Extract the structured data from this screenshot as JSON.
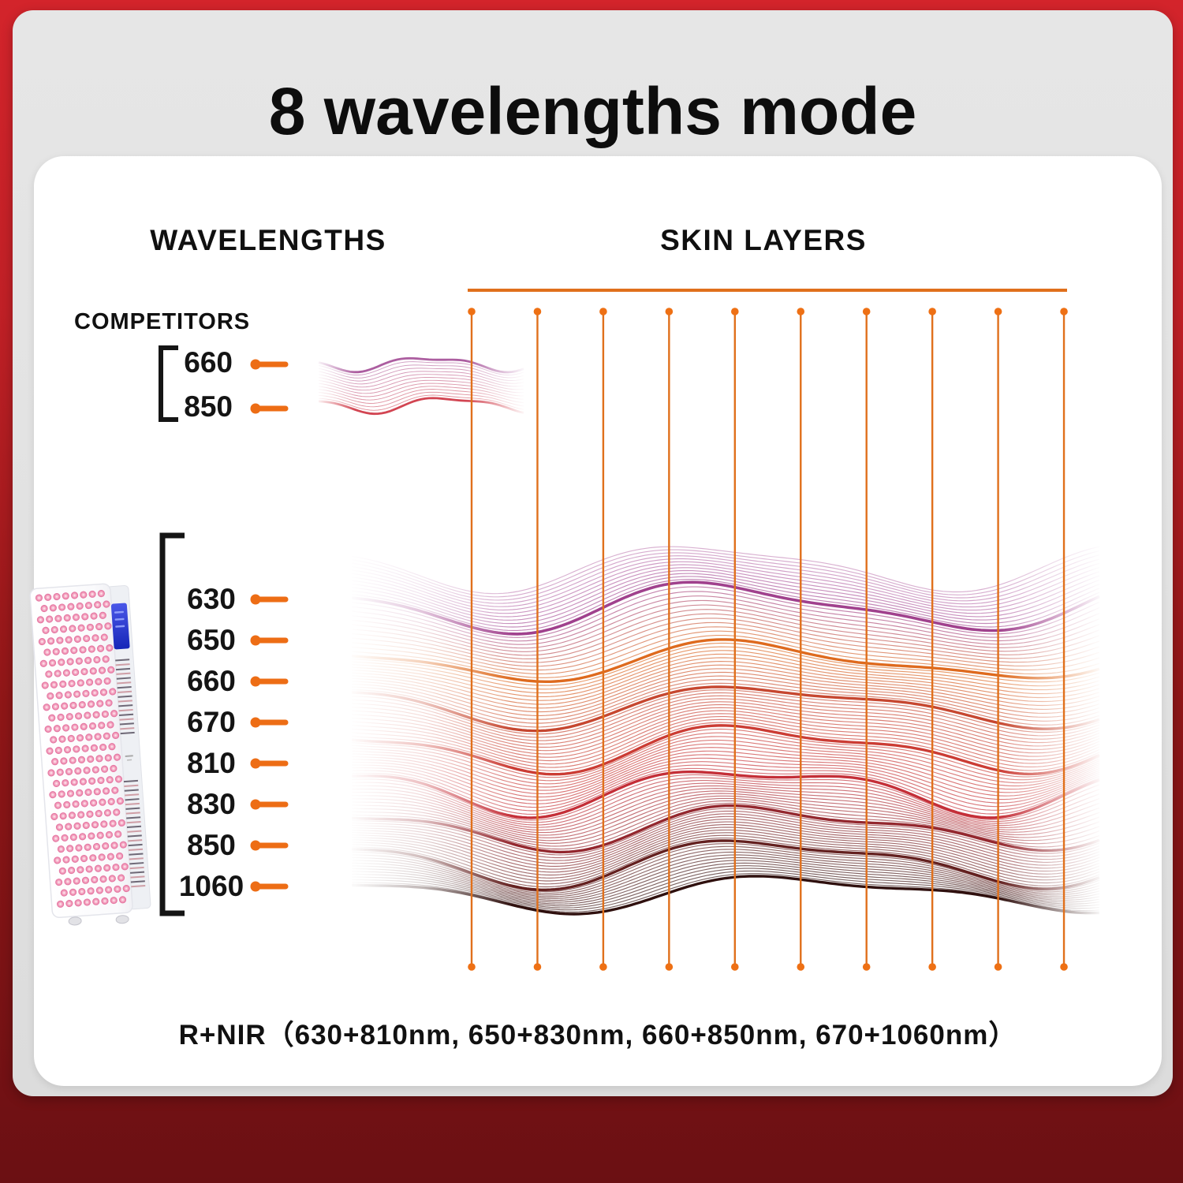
{
  "title": "8 wavelengths mode",
  "headings": {
    "left": "WAVELENGTHS",
    "right": "SKIN LAYERS"
  },
  "competitors": {
    "label": "COMPETITORS",
    "values": [
      "660",
      "850"
    ]
  },
  "device": {
    "wavelengths": [
      "630",
      "650",
      "660",
      "670",
      "810",
      "830",
      "850",
      "1060"
    ]
  },
  "caption": "R+NIR（630+810nm,  650+830nm,  660+850nm,  670+1060nm）",
  "colors": {
    "marker_orange": "#ED6D15",
    "grid_orange": "#E0701C",
    "grid_dot_orange": "#EE7014",
    "frame_red_top": "#D3242B",
    "frame_red_bottom": "#6B1013",
    "panel_gray": "#E3E3E3",
    "bracket_black": "#151515",
    "screen_blue": "#2B3BD3",
    "led_pink": "#EC7FA8"
  },
  "chart_data": {
    "type": "ribbon-diagram",
    "title": "8 wavelengths mode",
    "x_axis": {
      "label": "SKIN LAYERS",
      "columns": 10
    },
    "competitor_series": {
      "label": "COMPETITORS",
      "wavelengths_nm": [
        660,
        850
      ]
    },
    "device_series_nm": [
      630,
      650,
      660,
      670,
      810,
      830,
      850,
      1060
    ],
    "dual_mode_pairs": [
      "630+810nm",
      "650+830nm",
      "660+850nm",
      "670+1060nm"
    ],
    "thin_lines_per_band": 12,
    "waves_big": [
      {
        "label": "",
        "color": "#C98FBE",
        "base": 714,
        "a1": 27,
        "l1": 570,
        "p1": 472,
        "a2": 8,
        "l2": 300,
        "p2": 560
      },
      {
        "label": "630",
        "color": "#A0418D",
        "base": 769,
        "a1": 28,
        "l1": 585,
        "p1": 482,
        "a2": 9,
        "l2": 312,
        "p2": 600
      },
      {
        "label": "650",
        "color": "#DE6A1E",
        "base": 838,
        "a1": 22,
        "l1": 605,
        "p1": 500,
        "a2": 8,
        "l2": 322,
        "p2": 646
      },
      {
        "label": "660",
        "color": "#C64730",
        "base": 894,
        "a1": 24,
        "l1": 622,
        "p1": 512,
        "a2": 9,
        "l2": 332,
        "p2": 606
      },
      {
        "label": "670",
        "color": "#CB3C34",
        "base": 948,
        "a1": 26,
        "l1": 600,
        "p1": 522,
        "a2": 10,
        "l2": 302,
        "p2": 648
      },
      {
        "label": "810",
        "color": "#C42F38",
        "base": 1000,
        "a1": 26,
        "l1": 582,
        "p1": 520,
        "a2": 11,
        "l2": 292,
        "p2": 604
      },
      {
        "label": "830",
        "color": "#93272E",
        "base": 1048,
        "a1": 24,
        "l1": 602,
        "p1": 534,
        "a2": 10,
        "l2": 312,
        "p2": 652
      },
      {
        "label": "850",
        "color": "#63201F",
        "base": 1092,
        "a1": 27,
        "l1": 622,
        "p1": 518,
        "a2": 10,
        "l2": 322,
        "p2": 622
      },
      {
        "label": "1060",
        "color": "#2F100E",
        "base": 1132,
        "a1": 20,
        "l1": 642,
        "p1": 542,
        "a2": 8,
        "l2": 332,
        "p2": 662
      }
    ],
    "waves_competitor": [
      {
        "label": "660",
        "color": "#AC5EA0",
        "base": 461,
        "a1": 8,
        "l1": 195,
        "p1": 398,
        "a2": 3,
        "l2": 95,
        "p2": 430
      },
      {
        "label": "850",
        "color": "#D24552",
        "base": 513,
        "a1": 9,
        "l1": 200,
        "p1": 420,
        "a2": 3,
        "l2": 100,
        "p2": 455
      }
    ]
  }
}
